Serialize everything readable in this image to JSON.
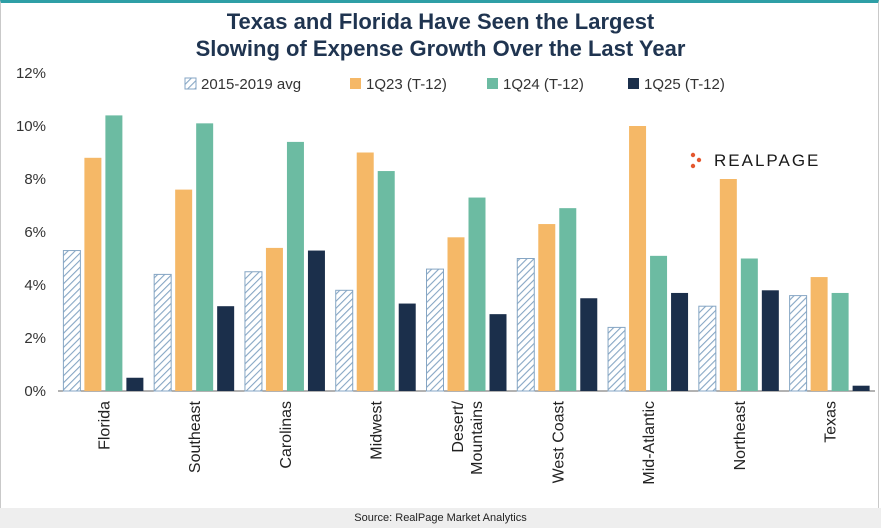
{
  "title_lines": [
    "Texas and Florida Have Seen the Largest",
    "Slowing of Expense Growth Over the Last Year"
  ],
  "source": "Source: RealPage Market Analytics",
  "logo_text": "REALPAGE",
  "colors": {
    "avg": "#86a6c4",
    "q23": "#f5b867",
    "q24": "#6cbba2",
    "q25": "#1b2f4b",
    "logo_dot": "#e4572e"
  },
  "chart_data": {
    "type": "bar",
    "categories": [
      "Florida",
      "Southeast",
      "Carolinas",
      "Midwest",
      "Desert/\nMountains",
      "West Coast",
      "Mid-Atlantic",
      "Northeast",
      "Texas"
    ],
    "series": [
      {
        "name": "2015-2019 avg",
        "pattern": "hatched",
        "values": [
          5.3,
          4.4,
          4.5,
          3.8,
          4.6,
          5.0,
          2.4,
          3.2,
          3.6
        ]
      },
      {
        "name": "1Q23 (T-12)",
        "values": [
          8.8,
          7.6,
          5.4,
          9.0,
          5.8,
          6.3,
          10.0,
          8.0,
          4.3
        ]
      },
      {
        "name": "1Q24 (T-12)",
        "values": [
          10.4,
          10.1,
          9.4,
          8.3,
          7.3,
          6.9,
          5.1,
          5.0,
          3.7
        ]
      },
      {
        "name": "1Q25 (T-12)",
        "values": [
          0.5,
          3.2,
          5.3,
          3.3,
          2.9,
          3.5,
          3.7,
          3.8,
          0.2
        ]
      }
    ],
    "yticks": [
      "0%",
      "2%",
      "4%",
      "6%",
      "8%",
      "10%",
      "12%"
    ],
    "ylim": [
      0,
      12
    ],
    "legend_position": "top",
    "grid": false
  }
}
